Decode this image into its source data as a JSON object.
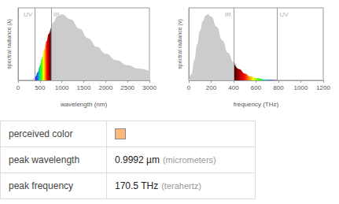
{
  "chart_data": [
    {
      "type": "area",
      "x_label": "wavelength (nm)",
      "y_label": "spectral radiance (λ)",
      "color": "#cccccc",
      "x": [
        0,
        200,
        300,
        380,
        400,
        450,
        500,
        550,
        600,
        650,
        700,
        750,
        800,
        900,
        1000,
        1200,
        1400,
        1600,
        1800,
        2000,
        2250,
        2500,
        2750,
        3000
      ],
      "values": [
        0,
        0,
        0.004,
        0.038,
        0.057,
        0.126,
        0.222,
        0.341,
        0.467,
        0.592,
        0.706,
        0.802,
        0.879,
        0.972,
        1.0,
        0.927,
        0.785,
        0.638,
        0.508,
        0.404,
        0.305,
        0.231,
        0.178,
        0.138
      ],
      "xlim": [
        0,
        3000
      ],
      "xticks": [
        0,
        500,
        1000,
        1500,
        2000,
        2500,
        3000
      ],
      "ylim": [
        0,
        1.1
      ],
      "tick_labels": "x",
      "annotations": [
        {
          "x": 380,
          "label": "UV"
        },
        {
          "x": 750,
          "label": "IR"
        }
      ]
    },
    {
      "type": "area",
      "x_label": "frequency (THz)",
      "y_label": "spectral radiance (ν)",
      "color": "#cccccc",
      "x": [
        0,
        25,
        50,
        75,
        100,
        125,
        150,
        170,
        200,
        250,
        300,
        350,
        400,
        450,
        500,
        550,
        600,
        700,
        790,
        800,
        900,
        1000,
        1200
      ],
      "values": [
        0,
        0.097,
        0.309,
        0.547,
        0.753,
        0.9,
        0.981,
        1.0,
        0.967,
        0.809,
        0.605,
        0.418,
        0.272,
        0.169,
        0.102,
        0.059,
        0.034,
        0.01,
        0.0033,
        0.0029,
        0.0008,
        0.0002,
        0
      ],
      "xlim": [
        0,
        1200
      ],
      "xticks": [
        0,
        200,
        400,
        600,
        800,
        1000,
        1200
      ],
      "ylim": [
        0,
        1.1
      ],
      "tick_labels": "x",
      "annotations": [
        {
          "x": 790,
          "label": "UV"
        },
        {
          "x": 400,
          "label": "IR"
        }
      ]
    }
  ],
  "table": {
    "rows": [
      {
        "label": "perceived color",
        "swatch": "#fdb87a"
      },
      {
        "label": "peak wavelength",
        "value": "0.9992 µm",
        "note": "(micrometers)"
      },
      {
        "label": "peak frequency",
        "value": "170.5 THz",
        "note": "(terahertz)"
      }
    ]
  }
}
